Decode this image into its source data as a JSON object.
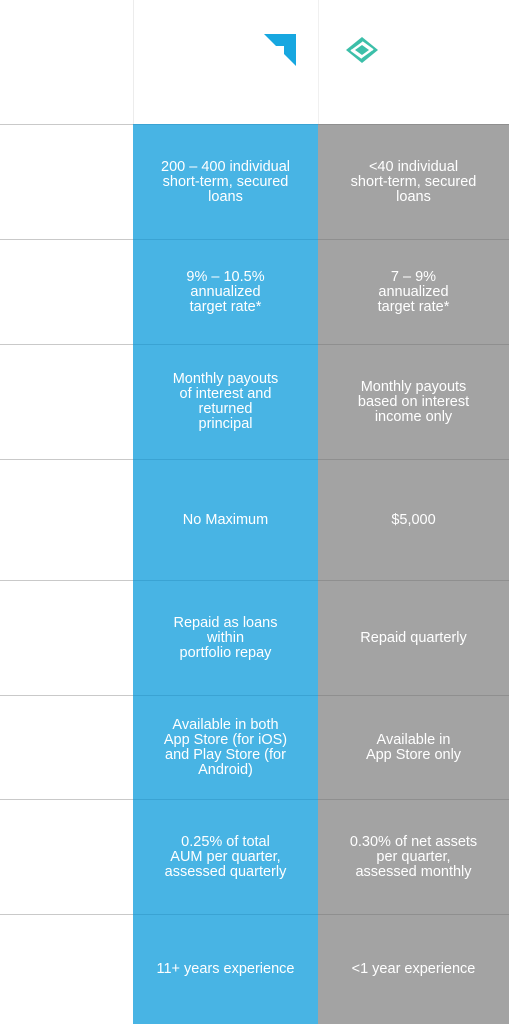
{
  "comparison": {
    "rows": [
      {
        "a": "200 – 400 individual\nshort-term, secured\nloans",
        "b": "<40 individual\nshort-term, secured\nloans"
      },
      {
        "a": "9% – 10.5%\nannualized\ntarget rate*",
        "b": "7 – 9%\nannualized\ntarget rate*"
      },
      {
        "a": "Monthly payouts\nof interest and\nreturned\nprincipal",
        "b": "Monthly payouts\nbased on interest\nincome only"
      },
      {
        "a": "No Maximum",
        "b": "$5,000"
      },
      {
        "a": "Repaid as loans\nwithin\nportfolio repay",
        "b": "Repaid quarterly"
      },
      {
        "a": "Available in both\nApp Store (for iOS)\nand Play Store (for\nAndroid)",
        "b": "Available in\nApp Store only"
      },
      {
        "a": "0.25% of total\nAUM per quarter,\nassessed quarterly",
        "b": "0.30% of net assets\nper quarter,\nassessed monthly"
      },
      {
        "a": "11+ years experience",
        "b": "<1 year experience"
      }
    ]
  },
  "logos": {
    "a_icon": "blue-corner-arrow-logo",
    "b_icon": "teal-diamond-logo",
    "a_color": "#17a7e0",
    "b_color": "#3cbfa9"
  },
  "colors": {
    "column_a": "#48b4e4",
    "column_b": "#a3a3a3",
    "text": "#ffffff"
  }
}
